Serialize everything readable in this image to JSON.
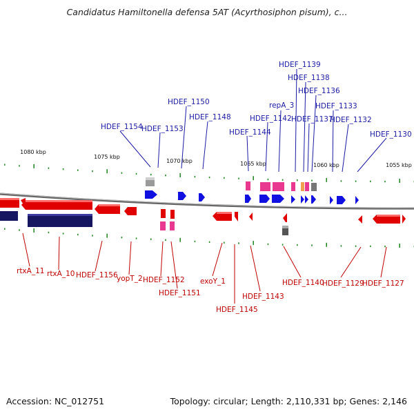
{
  "title": "Candidatus Hamiltonella defensa 5AT (Acyrthosiphon pisum), c...",
  "footer": {
    "accession": "Accession: NC_012751",
    "summary": "Topology: circular; Length: 2,110,331 bp; Genes: 2,146"
  },
  "colors": {
    "forward_label": "#1a1aa6",
    "reverse_label": "#c00000",
    "forward_cds": "#1010e0",
    "reverse_cds": "#e00000",
    "rna": "#e8388f",
    "pseudo": "#888888",
    "tick": "#2a8a2a",
    "backbone": "#888888",
    "reverse_block": "#151560"
  },
  "scale_labels": [
    "1080 kbp",
    "1075 kbp",
    "1070 kbp",
    "1065 kbp",
    "1060 kbp",
    "1055 kbp"
  ],
  "forward_genes": [
    "HDEF_1154",
    "HDEF_1153",
    "HDEF_1150",
    "HDEF_1148",
    "HDEF_1144",
    "HDEF_1142",
    "repA_3",
    "HDEF_1139",
    "HDEF_1138",
    "HDEF_1137",
    "HDEF_1136",
    "HDEF_1133",
    "HDEF_1132",
    "HDEF_1130"
  ],
  "reverse_genes": [
    "rtxA_11",
    "rtxA_10",
    "HDEF_1156",
    "yopT_2",
    "HDEF_1152",
    "HDEF_1151",
    "exoY_1",
    "HDEF_1145",
    "HDEF_1143",
    "HDEF_1140",
    "HDEF_1129",
    "HDEF_1127"
  ]
}
